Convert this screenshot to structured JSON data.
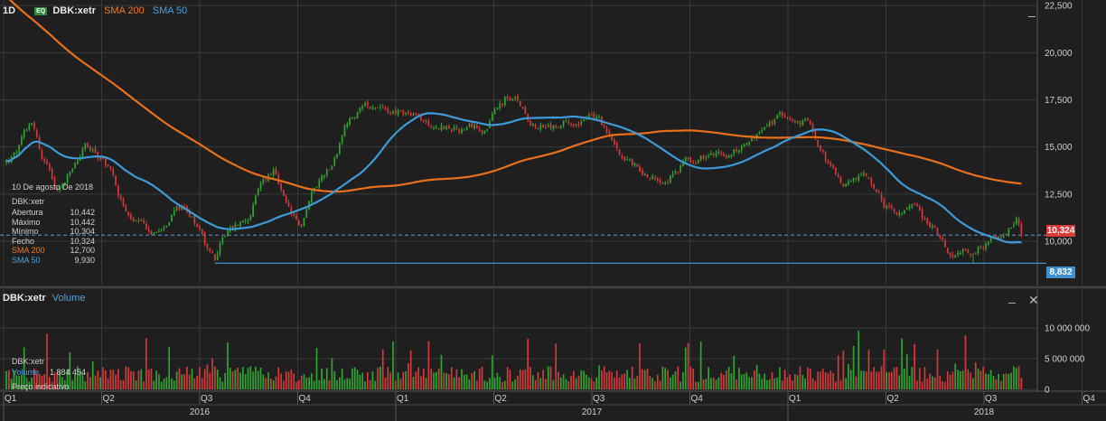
{
  "header": {
    "timeframe": "1D",
    "eq_badge": "EQ",
    "symbol": "DBK:xetr",
    "sma200_label": "SMA 200",
    "sma50_label": "SMA 50"
  },
  "info_box": {
    "date": "10 De agosto De 2018",
    "symbol": "DBK:xetr",
    "rows": [
      {
        "label": "Abertura",
        "value": "10,442"
      },
      {
        "label": "Máximo",
        "value": "10,442"
      },
      {
        "label": "Mínimo",
        "value": "10,304"
      },
      {
        "label": "Fecho",
        "value": "10,324"
      },
      {
        "label": "SMA 200",
        "value": "12,700"
      },
      {
        "label": "SMA 50",
        "value": "9,930"
      }
    ]
  },
  "price_tags": {
    "last": "10,324",
    "low": "8,832"
  },
  "volume_panel": {
    "symbol": "DBK:xetr",
    "label": "Volume",
    "info_symbol": "DBK:xetr",
    "info_label": "Volume",
    "info_value": "1 884 454",
    "note": "Preço indicativo",
    "minimize": "_",
    "close": "✕"
  },
  "price_panel": {
    "minimize": "_"
  },
  "colors": {
    "background": "#1f1f1f",
    "up": "#2fa52f",
    "down": "#d43a3a",
    "sma200": "#e8701c",
    "sma50": "#3d9ad8",
    "grid": "#3a3a3a",
    "tag_last": "#d93a3a",
    "tag_low": "#3d8fd0"
  },
  "chart_data": {
    "type": "candlestick",
    "price_axis": {
      "ticks": [
        10000,
        12500,
        15000,
        17500,
        20000,
        22500
      ],
      "tick_labels": [
        "10,000",
        "12,500",
        "15,000",
        "17,500",
        "20,000",
        "22,500"
      ],
      "ylim": [
        7700,
        22700
      ]
    },
    "volume_axis": {
      "ticks": [
        0,
        5000000,
        10000000
      ],
      "tick_labels": [
        "0",
        "5 000 000",
        "10 000 000"
      ],
      "ylim": [
        -150000,
        14000000
      ]
    },
    "quarters": [
      "Q1",
      "Q2",
      "Q3",
      "Q4",
      "Q1",
      "Q2",
      "Q3",
      "Q4",
      "Q1",
      "Q2",
      "Q3",
      "Q4"
    ],
    "years": [
      "2016",
      "2017",
      "2018"
    ],
    "price_keypoints": [
      [
        0,
        14.2
      ],
      [
        0.1,
        14.6
      ],
      [
        0.27,
        16.5
      ],
      [
        0.37,
        14.3
      ],
      [
        0.45,
        13.9
      ],
      [
        0.5,
        12.8
      ],
      [
        0.58,
        13.0
      ],
      [
        0.72,
        14.2
      ],
      [
        0.8,
        15.1
      ],
      [
        0.9,
        14.6
      ],
      [
        1.0,
        14.2
      ],
      [
        1.05,
        14.0
      ],
      [
        1.15,
        12.5
      ],
      [
        1.25,
        11.2
      ],
      [
        1.4,
        10.6
      ],
      [
        1.52,
        10.3
      ],
      [
        1.6,
        11.0
      ],
      [
        1.7,
        11.5
      ],
      [
        1.8,
        12.0
      ],
      [
        1.9,
        11.3
      ],
      [
        2.0,
        10.6
      ],
      [
        2.05,
        9.8
      ],
      [
        2.1,
        9.5
      ],
      [
        2.14,
        9.0
      ],
      [
        2.2,
        10.3
      ],
      [
        2.3,
        10.7
      ],
      [
        2.45,
        11.2
      ],
      [
        2.6,
        13.0
      ],
      [
        2.72,
        13.8
      ],
      [
        2.85,
        11.7
      ],
      [
        2.95,
        10.9
      ],
      [
        3.0,
        10.5
      ],
      [
        3.05,
        11.5
      ],
      [
        3.15,
        13.0
      ],
      [
        3.3,
        14.0
      ],
      [
        3.45,
        16.0
      ],
      [
        3.6,
        16.8
      ],
      [
        3.8,
        17.4
      ],
      [
        3.95,
        17.0
      ],
      [
        4.0,
        16.9
      ],
      [
        4.1,
        16.8
      ],
      [
        4.3,
        16.2
      ],
      [
        4.5,
        16.1
      ],
      [
        4.7,
        15.8
      ],
      [
        4.9,
        16.1
      ],
      [
        5.0,
        16.9
      ],
      [
        5.1,
        17.6
      ],
      [
        5.2,
        17.4
      ],
      [
        5.35,
        16.5
      ],
      [
        5.55,
        16.0
      ],
      [
        5.75,
        16.4
      ],
      [
        5.9,
        16.7
      ],
      [
        6.05,
        16.4
      ],
      [
        6.2,
        15.0
      ],
      [
        6.35,
        14.3
      ],
      [
        6.5,
        13.6
      ],
      [
        6.65,
        13.4
      ],
      [
        6.8,
        13.8
      ],
      [
        6.95,
        14.3
      ],
      [
        7.1,
        14.6
      ],
      [
        7.2,
        14.4
      ],
      [
        7.35,
        14.6
      ],
      [
        7.5,
        15.1
      ],
      [
        7.65,
        15.6
      ],
      [
        7.8,
        16.2
      ],
      [
        7.95,
        16.7
      ],
      [
        8.05,
        16.1
      ],
      [
        8.2,
        16.2
      ],
      [
        8.3,
        15.2
      ],
      [
        8.4,
        14.0
      ],
      [
        8.5,
        13.1
      ],
      [
        8.6,
        13.0
      ],
      [
        8.75,
        13.2
      ],
      [
        8.85,
        12.7
      ],
      [
        8.9,
        12.3
      ],
      [
        8.95,
        11.4
      ],
      [
        9.05,
        11.4
      ],
      [
        9.15,
        11.8
      ],
      [
        9.25,
        11.6
      ],
      [
        9.35,
        11.0
      ],
      [
        9.45,
        10.8
      ],
      [
        9.52,
        10.0
      ],
      [
        9.6,
        9.5
      ],
      [
        9.7,
        9.6
      ],
      [
        9.78,
        9.5
      ],
      [
        9.85,
        9.0
      ],
      [
        9.92,
        9.6
      ],
      [
        10.0,
        9.9
      ],
      [
        10.1,
        10.2
      ],
      [
        10.2,
        10.5
      ],
      [
        10.3,
        11.1
      ],
      [
        10.38,
        10.4
      ]
    ],
    "series": [
      {
        "name": "DBK:xetr",
        "kind": "candles",
        "last_close": 10.324,
        "period_low": 8.832
      },
      {
        "name": "SMA 200",
        "kind": "line",
        "last": 12.7
      },
      {
        "name": "SMA 50",
        "kind": "line",
        "last": 9.93
      },
      {
        "name": "Volume",
        "kind": "bars",
        "last": 1884454
      }
    ]
  }
}
